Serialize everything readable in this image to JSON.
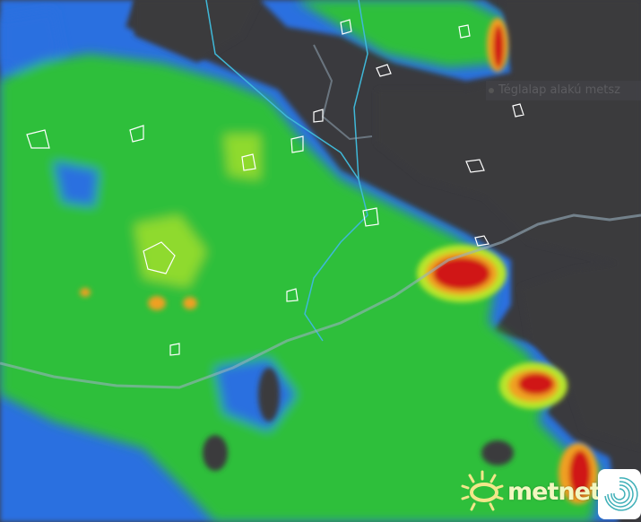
{
  "map": {
    "type": "precipitation radar",
    "colors": {
      "land": "#3a3a3e",
      "light": "#2a6fe0",
      "weak": "#2fbf3a",
      "moderate": "#b8e62a",
      "strong": "#f0a020",
      "intense": "#d01818",
      "border": "#8aa0b0",
      "river": "#3fb8d8"
    }
  },
  "tooltip": {
    "text": "Téglalap alakú metsz"
  },
  "branding": {
    "logo_text": "metnet",
    "sun_icon": "sun-icon",
    "app_icon": "swirl-icon"
  }
}
